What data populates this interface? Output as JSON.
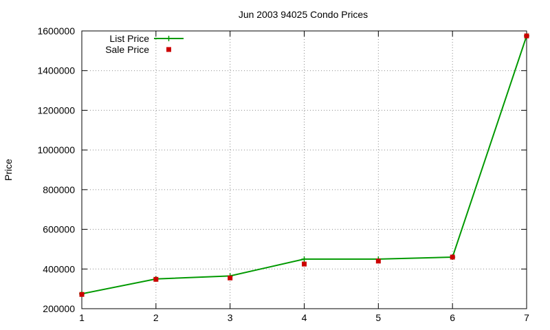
{
  "chart_data": {
    "type": "line",
    "title": "Jun 2003 94025 Condo Prices",
    "xlabel": "",
    "ylabel": "Price",
    "xlim": [
      1,
      7
    ],
    "ylim": [
      200000,
      1600000
    ],
    "xticks": [
      1,
      2,
      3,
      4,
      5,
      6,
      7
    ],
    "yticks": [
      200000,
      400000,
      600000,
      800000,
      1000000,
      1200000,
      1400000,
      1600000
    ],
    "grid": true,
    "legend_position": "top-left",
    "series": [
      {
        "name": "List Price",
        "style": "line+cross",
        "color": "#009900",
        "x": [
          1,
          2,
          3,
          4,
          5,
          6,
          7
        ],
        "values": [
          275000,
          350000,
          365000,
          450000,
          450000,
          460000,
          1575000
        ]
      },
      {
        "name": "Sale Price",
        "style": "square",
        "color": "#cc0000",
        "x": [
          1,
          2,
          3,
          4,
          5,
          6,
          7
        ],
        "values": [
          272000,
          348000,
          355000,
          425000,
          440000,
          460000,
          1575000
        ]
      }
    ]
  }
}
